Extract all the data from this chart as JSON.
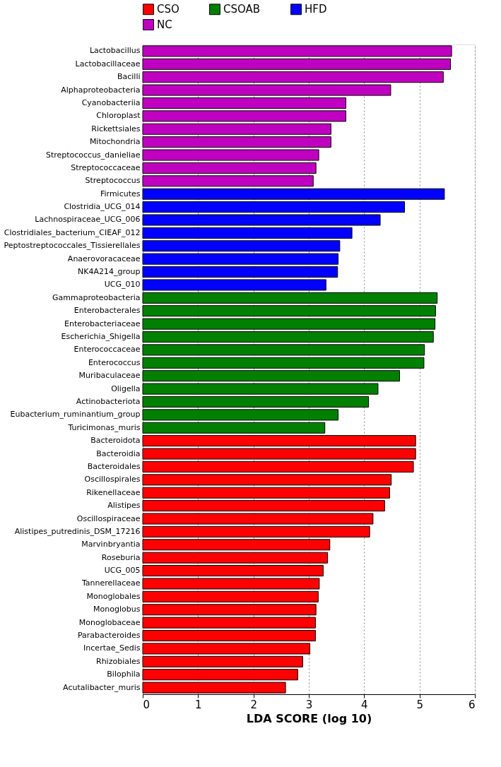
{
  "chart_data": {
    "type": "bar",
    "orientation": "horizontal",
    "xlabel": "LDA SCORE (log 10)",
    "categories": [
      "Lactobacillus",
      "Lactobacillaceae",
      "Bacilli",
      "Alphaproteobacteria",
      "Cyanobacteriia",
      "Chloroplast",
      "Rickettsiales",
      "Mitochondria",
      "Streptococcus_danieliae",
      "Streptococcaceae",
      "Streptococcus",
      "Firmicutes",
      "Clostridia_UCG_014",
      "Lachnospiraceae_UCG_006",
      "Clostridiales_bacterium_CIEAF_012",
      "Peptostreptococcales_Tissierellales",
      "Anaerovoracaceae",
      "NK4A214_group",
      "UCG_010",
      "Gammaproteobacteria",
      "Enterobacterales",
      "Enterobacteriaceae",
      "Escherichia_Shigella",
      "Enterococcaceae",
      "Enterococcus",
      "Muribaculaceae",
      "Oligella",
      "Actinobacteriota",
      "Eubacterium_ruminantium_group",
      "Turicimonas_muris",
      "Bacteroidota",
      "Bacteroidia",
      "Bacteroidales",
      "Oscillospirales",
      "Rikenellaceae",
      "Alistipes",
      "Oscillospiraceae",
      "Alistipes_putredinis_DSM_17216",
      "Marvinbryantia",
      "Roseburia",
      "UCG_005",
      "Tannerellaceae",
      "Monoglobales",
      "Monoglobus",
      "Monoglobaceae",
      "Parabacteroides",
      "Incertae_Sedis",
      "Rhizobiales",
      "Bilophila",
      "Acutalibacter_muris"
    ],
    "series": [
      {
        "name": "CSO",
        "color": "#ff0000",
        "values": [
          null,
          null,
          null,
          null,
          null,
          null,
          null,
          null,
          null,
          null,
          null,
          null,
          null,
          null,
          null,
          null,
          null,
          null,
          null,
          null,
          null,
          null,
          null,
          null,
          null,
          null,
          null,
          null,
          null,
          null,
          4.93,
          4.93,
          4.89,
          4.49,
          4.46,
          4.37,
          4.16,
          4.1,
          3.38,
          3.34,
          3.26,
          3.19,
          3.17,
          3.13,
          3.12,
          3.12,
          3.02,
          2.89,
          2.8,
          2.58
        ]
      },
      {
        "name": "CSOAB",
        "color": "#008000",
        "values": [
          null,
          null,
          null,
          null,
          null,
          null,
          null,
          null,
          null,
          null,
          null,
          null,
          null,
          null,
          null,
          null,
          null,
          null,
          null,
          5.32,
          5.29,
          5.28,
          5.25,
          5.09,
          5.08,
          4.64,
          4.25,
          4.08,
          3.53,
          3.29,
          null,
          null,
          null,
          null,
          null,
          null,
          null,
          null,
          null,
          null,
          null,
          null,
          null,
          null,
          null,
          null,
          null,
          null,
          null,
          null
        ]
      },
      {
        "name": "HFD",
        "color": "#0000ff",
        "values": [
          null,
          null,
          null,
          null,
          null,
          null,
          null,
          null,
          null,
          null,
          null,
          5.45,
          4.73,
          4.29,
          3.78,
          3.56,
          3.53,
          3.52,
          3.31,
          null,
          null,
          null,
          null,
          null,
          null,
          null,
          null,
          null,
          null,
          null,
          null,
          null,
          null,
          null,
          null,
          null,
          null,
          null,
          null,
          null,
          null,
          null,
          null,
          null,
          null,
          null,
          null,
          null,
          null,
          null
        ]
      },
      {
        "name": "NC",
        "color": "#c000c0",
        "values": [
          5.58,
          5.56,
          5.43,
          4.48,
          3.67,
          3.67,
          3.4,
          3.4,
          3.18,
          3.13,
          3.08,
          null,
          null,
          null,
          null,
          null,
          null,
          null,
          null,
          null,
          null,
          null,
          null,
          null,
          null,
          null,
          null,
          null,
          null,
          null,
          null,
          null,
          null,
          null,
          null,
          null,
          null,
          null,
          null,
          null,
          null,
          null,
          null,
          null,
          null,
          null,
          null,
          null,
          null,
          null
        ]
      }
    ],
    "xlim": [
      0,
      6
    ],
    "xticks": [
      0,
      1,
      2,
      3,
      4,
      5,
      6
    ],
    "grid": "x",
    "legend": "top"
  }
}
